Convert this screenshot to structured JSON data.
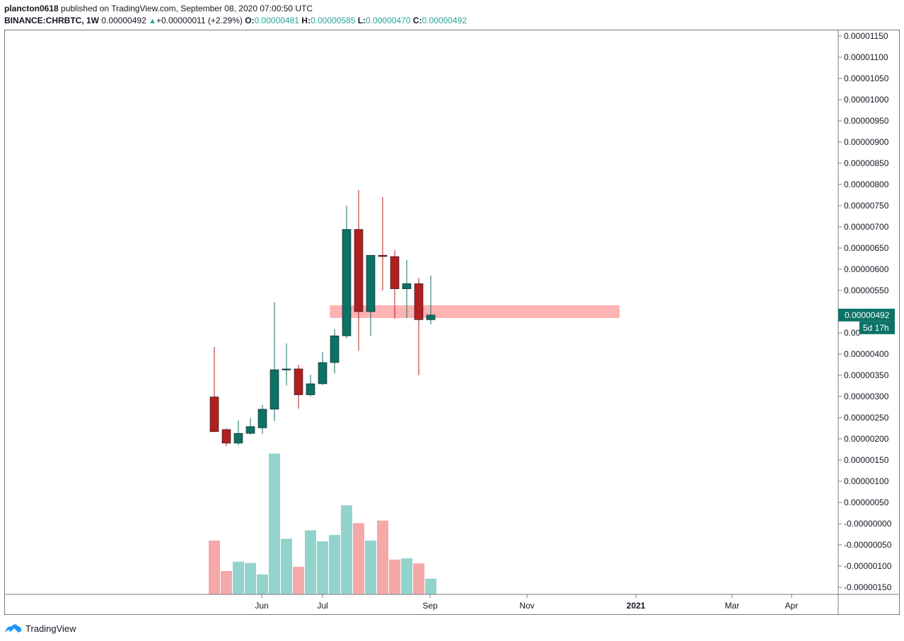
{
  "header": {
    "line1": {
      "user": "plancton0618",
      "rest": " published on TradingView.com, September 08, 2020 07:00:50 UTC"
    },
    "symbol": "BINANCE:CHRBTC, 1W",
    "price": "0.00000492",
    "change": "+0.00000011 (+2.29%)",
    "o_label": "O:",
    "o": "0.00000481",
    "h_label": "H:",
    "h": "0.00000585",
    "l_label": "L:",
    "l": "0.00000470",
    "c_label": "C:",
    "c": "0.00000492"
  },
  "footer": {
    "brand": "TradingView"
  },
  "colors": {
    "up": "#0c7265",
    "down": "#b21f1f",
    "vol_up": "#93d3cd",
    "vol_down": "#f5a8a8",
    "zone": "#ffb3b3",
    "price_tag": "#0c7265"
  },
  "chart_data": {
    "type": "candlestick",
    "symbol": "BINANCE:CHRBTC",
    "interval": "1W",
    "y_axis_ticks": [
      "0.00001150",
      "0.00001100",
      "0.00001050",
      "0.00001000",
      "0.00000950",
      "0.00000900",
      "0.00000850",
      "0.00000800",
      "0.00000750",
      "0.00000700",
      "0.00000650",
      "0.00000600",
      "0.00000550",
      "0.00000400",
      "0.00000350",
      "0.00000300",
      "0.00000250",
      "0.00000200",
      "0.00000150",
      "0.00000100",
      "0.00000050",
      "-0.00000000",
      "-0.00000050",
      "-0.00000100",
      "-0.00000150"
    ],
    "y_axis_partial_label": "0.00",
    "x_axis_labels": [
      "Jun",
      "Jul",
      "Sep",
      "Nov",
      "2021",
      "Mar",
      "Apr"
    ],
    "last_price_label": "0.00000492",
    "countdown_label": "5d 17h",
    "candles": [
      {
        "o": 2.99e-06,
        "h": 4.17e-06,
        "l": 2.16e-06,
        "c": 2.17e-06
      },
      {
        "o": 2.22e-06,
        "h": 2.25e-06,
        "l": 1.83e-06,
        "c": 1.9e-06
      },
      {
        "o": 1.9e-06,
        "h": 2.43e-06,
        "l": 1.85e-06,
        "c": 2.13e-06
      },
      {
        "o": 2.13e-06,
        "h": 2.49e-06,
        "l": 2.1e-06,
        "c": 2.29e-06
      },
      {
        "o": 2.26e-06,
        "h": 2.8e-06,
        "l": 2.12e-06,
        "c": 2.7e-06
      },
      {
        "o": 2.7e-06,
        "h": 5.22e-06,
        "l": 2.42e-06,
        "c": 3.63e-06
      },
      {
        "o": 3.63e-06,
        "h": 4.25e-06,
        "l": 3.26e-06,
        "c": 3.65e-06
      },
      {
        "o": 3.65e-06,
        "h": 3.75e-06,
        "l": 2.71e-06,
        "c": 3.04e-06
      },
      {
        "o": 3.04e-06,
        "h": 3.51e-06,
        "l": 3e-06,
        "c": 3.3e-06
      },
      {
        "o": 3.3e-06,
        "h": 4.05e-06,
        "l": 3.27e-06,
        "c": 3.8e-06
      },
      {
        "o": 3.8e-06,
        "h": 4.58e-06,
        "l": 3.54e-06,
        "c": 4.43e-06
      },
      {
        "o": 4.43e-06,
        "h": 7.5e-06,
        "l": 4.37e-06,
        "c": 6.94e-06
      },
      {
        "o": 6.94e-06,
        "h": 7.87e-06,
        "l": 4.08e-06,
        "c": 5e-06
      },
      {
        "o": 5e-06,
        "h": 6.33e-06,
        "l": 4.43e-06,
        "c": 6.33e-06
      },
      {
        "o": 6.33e-06,
        "h": 7.7e-06,
        "l": 5.5e-06,
        "c": 6.3e-06
      },
      {
        "o": 6.3e-06,
        "h": 6.45e-06,
        "l": 4.83e-06,
        "c": 5.54e-06
      },
      {
        "o": 5.54e-06,
        "h": 6.22e-06,
        "l": 4.85e-06,
        "c": 5.66e-06
      },
      {
        "o": 5.66e-06,
        "h": 5.8e-06,
        "l": 3.5e-06,
        "c": 4.81e-06
      },
      {
        "o": 4.81e-06,
        "h": 5.85e-06,
        "l": 4.7e-06,
        "c": 4.92e-06
      }
    ],
    "volume": [
      {
        "v": 0.127,
        "dir": "down"
      },
      {
        "v": 0.055,
        "dir": "down"
      },
      {
        "v": 0.077,
        "dir": "up"
      },
      {
        "v": 0.074,
        "dir": "up"
      },
      {
        "v": 0.047,
        "dir": "up"
      },
      {
        "v": 0.332,
        "dir": "up"
      },
      {
        "v": 0.131,
        "dir": "up"
      },
      {
        "v": 0.065,
        "dir": "down"
      },
      {
        "v": 0.151,
        "dir": "up"
      },
      {
        "v": 0.125,
        "dir": "up"
      },
      {
        "v": 0.14,
        "dir": "up"
      },
      {
        "v": 0.21,
        "dir": "up"
      },
      {
        "v": 0.168,
        "dir": "down"
      },
      {
        "v": 0.127,
        "dir": "up"
      },
      {
        "v": 0.174,
        "dir": "down"
      },
      {
        "v": 0.082,
        "dir": "down"
      },
      {
        "v": 0.085,
        "dir": "up"
      },
      {
        "v": 0.073,
        "dir": "down"
      },
      {
        "v": 0.037,
        "dir": "up"
      }
    ],
    "zone": {
      "top": 5.15e-06,
      "bottom": 4.85e-06,
      "from_index": 9.6,
      "to_index": 33.7
    }
  }
}
